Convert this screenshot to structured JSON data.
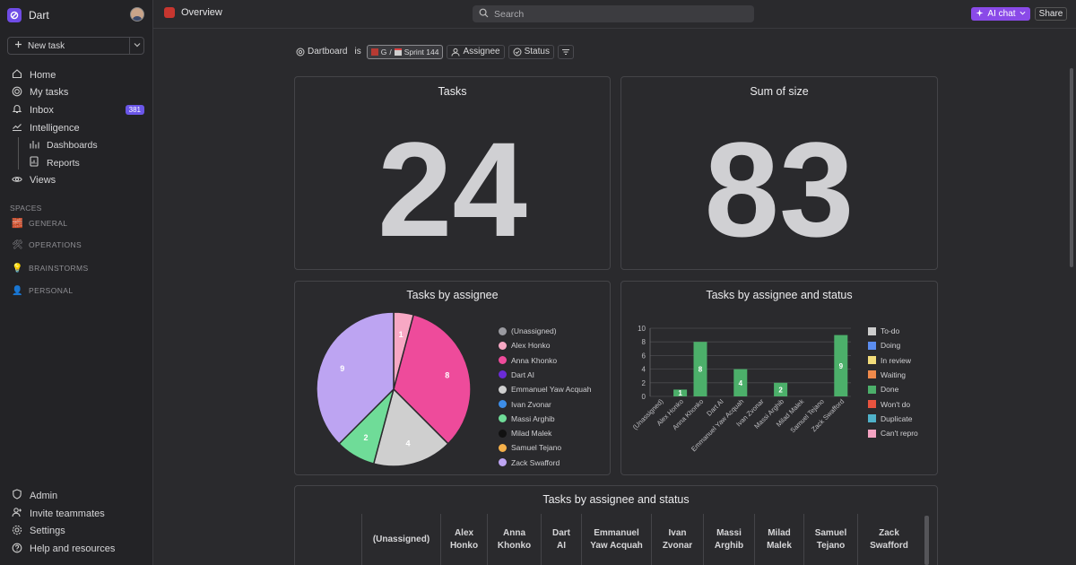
{
  "workspace": {
    "name": "Dart"
  },
  "sidebar": {
    "new_task": "New task",
    "nav": [
      {
        "label": "Home",
        "icon": "home-icon"
      },
      {
        "label": "My tasks",
        "icon": "target-icon"
      },
      {
        "label": "Inbox",
        "icon": "bell-icon",
        "badge": "381"
      },
      {
        "label": "Intelligence",
        "icon": "trend-icon"
      },
      {
        "label": "Dashboards",
        "icon": "dashboard-icon"
      },
      {
        "label": "Reports",
        "icon": "report-icon"
      },
      {
        "label": "Views",
        "icon": "eye-icon"
      }
    ],
    "spaces_label": "SPACES",
    "spaces": [
      {
        "label": "GENERAL",
        "icon": "🧱"
      },
      {
        "label": "OPERATIONS",
        "icon": "🛠"
      },
      {
        "label": "BRAINSTORMS",
        "icon": "💡"
      },
      {
        "label": "PERSONAL",
        "icon": "👤"
      }
    ],
    "bottom": [
      {
        "label": "Admin",
        "icon": "shield-icon"
      },
      {
        "label": "Invite teammates",
        "icon": "user-plus-icon"
      },
      {
        "label": "Settings",
        "icon": "gear-icon"
      },
      {
        "label": "Help and resources",
        "icon": "help-icon"
      }
    ]
  },
  "topbar": {
    "title": "Overview",
    "search_placeholder": "Search",
    "ai_chat": "AI chat",
    "share": "Share"
  },
  "filters": {
    "field": "Dartboard",
    "op": "is",
    "value_a": "G",
    "sep": "/",
    "value_b": "Sprint 144",
    "assignee": "Assignee",
    "status": "Status"
  },
  "cards": {
    "tasks": {
      "title": "Tasks",
      "value": "24"
    },
    "size": {
      "title": "Sum of size",
      "value": "83"
    },
    "pie_title": "Tasks by assignee",
    "bar_title": "Tasks by assignee and status",
    "table_title": "Tasks by assignee and status"
  },
  "chart_data": [
    {
      "type": "pie",
      "title": "Tasks by assignee",
      "slices": [
        {
          "label": "(Unassigned)",
          "value": 0,
          "color": "#9a9aa0"
        },
        {
          "label": "Alex Honko",
          "value": 1,
          "color": "#f7a8c4"
        },
        {
          "label": "Anna Khonko",
          "value": 8,
          "color": "#ee4b9b"
        },
        {
          "label": "Dart AI",
          "value": 0,
          "color": "#6b2bd6"
        },
        {
          "label": "Emmanuel Yaw Acquah",
          "value": 4,
          "color": "#cfcfcf"
        },
        {
          "label": "Ivan Zvonar",
          "value": 0,
          "color": "#3d8ee8"
        },
        {
          "label": "Massi Arghib",
          "value": 2,
          "color": "#6fdc98"
        },
        {
          "label": "Milad Malek",
          "value": 0,
          "color": "#111111"
        },
        {
          "label": "Samuel Tejano",
          "value": 0,
          "color": "#f5b04a"
        },
        {
          "label": "Zack Swafford",
          "value": 9,
          "color": "#bda4f2"
        }
      ]
    },
    {
      "type": "bar",
      "title": "Tasks by assignee and status",
      "categories": [
        "(Unassigned)",
        "Alex Honko",
        "Anna Khonko",
        "Dart AI",
        "Emmanuel Yaw Acquah",
        "Ivan Zvonar",
        "Massi Arghib",
        "Milad Malek",
        "Samuel Tejano",
        "Zack Swafford"
      ],
      "series": [
        {
          "name": "To-do",
          "color": "#cccccc",
          "values": [
            0,
            0,
            0,
            0,
            0,
            0,
            0,
            0,
            0,
            0
          ]
        },
        {
          "name": "Doing",
          "color": "#5b8def",
          "values": [
            0,
            0,
            0,
            0,
            0,
            0,
            0,
            0,
            0,
            0
          ]
        },
        {
          "name": "In review",
          "color": "#f2dc7a",
          "values": [
            0,
            0,
            0,
            0,
            0,
            0,
            0,
            0,
            0,
            0
          ]
        },
        {
          "name": "Waiting",
          "color": "#f08a4b",
          "values": [
            0,
            0,
            0,
            0,
            0,
            0,
            0,
            0,
            0,
            0
          ]
        },
        {
          "name": "Done",
          "color": "#4caf6a",
          "values": [
            0,
            1,
            8,
            0,
            4,
            0,
            2,
            0,
            0,
            9
          ]
        },
        {
          "name": "Won't do",
          "color": "#e8533f",
          "values": [
            0,
            0,
            0,
            0,
            0,
            0,
            0,
            0,
            0,
            0
          ]
        },
        {
          "name": "Duplicate",
          "color": "#4fb1c9",
          "values": [
            0,
            0,
            0,
            0,
            0,
            0,
            0,
            0,
            0,
            0
          ]
        },
        {
          "name": "Can't repro",
          "color": "#f4a3c2",
          "values": [
            0,
            0,
            0,
            0,
            0,
            0,
            0,
            0,
            0,
            0
          ]
        }
      ],
      "yticks": [
        "0",
        "2",
        "4",
        "6",
        "8",
        "10"
      ],
      "ylim": [
        0,
        10
      ],
      "grid": true,
      "legend": "right"
    }
  ],
  "table": {
    "columns": [
      {
        "label": "(Unassigned)"
      },
      {
        "label": "Alex Honko"
      },
      {
        "label": "Anna Khonko"
      },
      {
        "label": "Dart AI"
      },
      {
        "label": "Emmanuel Yaw Acquah"
      },
      {
        "label": "Ivan Zvonar"
      },
      {
        "label": "Massi Arghib"
      },
      {
        "label": "Milad Malek"
      },
      {
        "label": "Samuel Tejano"
      },
      {
        "label": "Zack Swafford"
      }
    ]
  }
}
